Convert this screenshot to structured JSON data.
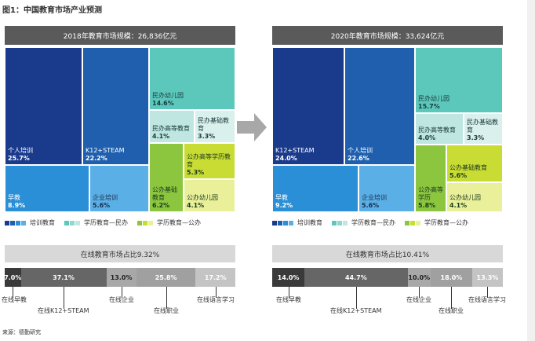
{
  "figure_title": "图1：中国教育市场产业预测",
  "source": "来源：德勤研究",
  "legend": {
    "training": "培训教育",
    "private_academic": "学历教育—民办",
    "public_academic": "学历教育—公办"
  },
  "colors": {
    "training_dark": "#1a3a8c",
    "training_mid": "#1f5fad",
    "training_blue": "#2a8fd6",
    "training_light": "#5ab0e6",
    "private_dark": "#5cc8bc",
    "private_light": "#bfe6e0",
    "public_dark": "#8cc63f",
    "public_mid": "#c9dc34",
    "public_light": "#eaf09a",
    "bar_dark": "#3a3a3a",
    "bar_mid": "#666666",
    "bar_light": "#a8a8a8",
    "bar_lighter": "#c8c8c8"
  },
  "chart_data": [
    {
      "type": "treemap",
      "title": "2018年教育市场规模：26,836亿元",
      "cells": [
        {
          "name": "个人培训",
          "value": 25.7,
          "label": "25.7%",
          "group": "training"
        },
        {
          "name": "K12+STEAM",
          "value": 22.2,
          "label": "22.2%",
          "group": "training"
        },
        {
          "name": "早教",
          "value": 8.9,
          "label": "8.9%",
          "group": "training"
        },
        {
          "name": "企业培训",
          "value": 5.6,
          "label": "5.6%",
          "group": "training"
        },
        {
          "name": "民办幼儿园",
          "value": 14.6,
          "label": "14.6%",
          "group": "private"
        },
        {
          "name": "民办高等教育",
          "value": 4.1,
          "label": "4.1%",
          "group": "private"
        },
        {
          "name": "民办基础教育",
          "value": 3.3,
          "label": "3.3%",
          "group": "private"
        },
        {
          "name": "公办高等学历教育",
          "value": 5.3,
          "label": "5.3%",
          "group": "public"
        },
        {
          "name": "公办基础教育",
          "value": 6.2,
          "label": "6.2%",
          "group": "public"
        },
        {
          "name": "公办幼儿园",
          "value": 4.1,
          "label": "4.1%",
          "group": "public"
        }
      ]
    },
    {
      "type": "treemap",
      "title": "2020年教育市场规模：33,624亿元",
      "cells": [
        {
          "name": "K12+STEAM",
          "value": 24.0,
          "label": "24.0%",
          "group": "training"
        },
        {
          "name": "个人培训",
          "value": 22.6,
          "label": "22.6%",
          "group": "training"
        },
        {
          "name": "早教",
          "value": 9.2,
          "label": "9.2%",
          "group": "training"
        },
        {
          "name": "企业培训",
          "value": 5.6,
          "label": "5.6%",
          "group": "training"
        },
        {
          "name": "民办幼儿园",
          "value": 15.7,
          "label": "15.7%",
          "group": "private"
        },
        {
          "name": "民办高等教育",
          "value": 4.0,
          "label": "4.0%",
          "group": "private"
        },
        {
          "name": "民办基础教育",
          "value": 3.3,
          "label": "3.3%",
          "group": "private"
        },
        {
          "name": "公办高等学历",
          "value": 5.8,
          "label": "5.8%",
          "group": "public"
        },
        {
          "name": "公办基础教育",
          "value": 5.6,
          "label": "5.6%",
          "group": "public"
        },
        {
          "name": "公办幼儿园",
          "value": 4.1,
          "label": "4.1%",
          "group": "public"
        }
      ]
    },
    {
      "type": "bar",
      "title": "在线教育市场占比9.32%",
      "categories": [
        "在线早教",
        "在线K12+STEAM",
        "在线企业",
        "在线职业",
        "在线语言学习"
      ],
      "values": [
        7.0,
        37.1,
        13.0,
        25.8,
        17.2
      ],
      "labels": [
        "7.0%",
        "37.1%",
        "13.0%",
        "25.8%",
        "17.2%"
      ]
    },
    {
      "type": "bar",
      "title": "在线教育市场占比10.41%",
      "categories": [
        "在线早教",
        "在线K12+STEAM",
        "在线企业",
        "在线职业",
        "在线语言学习"
      ],
      "values": [
        14.0,
        44.7,
        10.0,
        18.0,
        13.3
      ],
      "labels": [
        "14.0%",
        "44.7%",
        "10.0%",
        "18.0%",
        "13.3%"
      ]
    }
  ]
}
